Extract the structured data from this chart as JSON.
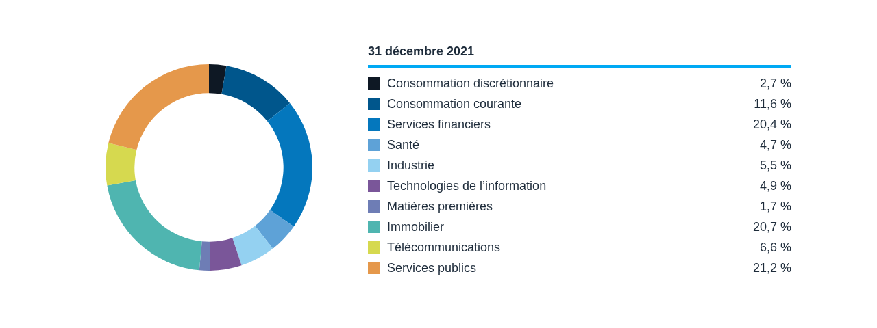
{
  "chart_data": {
    "type": "donut",
    "legend_title": "31 décembre 2021",
    "categories": [
      "Consommation discrétionnaire",
      "Consommation courante",
      "Services financiers",
      "Santé",
      "Industrie",
      "Technologies de l’information",
      "Matières premières",
      "Immobilier",
      "Télécommunications",
      "Services publics"
    ],
    "values": [
      2.7,
      11.6,
      20.4,
      4.7,
      5.5,
      4.9,
      1.7,
      20.7,
      6.6,
      21.2
    ],
    "value_labels": [
      "2,7 %",
      "11,6 %",
      "20,4 %",
      "4,7 %",
      "5,5 %",
      "4,9 %",
      "1,7 %",
      "20,7 %",
      "6,6 %",
      "21,2 %"
    ],
    "colors": [
      "#0e1824",
      "#00568c",
      "#0477bd",
      "#5ea2d7",
      "#94d1f1",
      "#7a5699",
      "#6e7db5",
      "#4fb5b0",
      "#d6d94f",
      "#e5984b"
    ],
    "legend": "right"
  }
}
